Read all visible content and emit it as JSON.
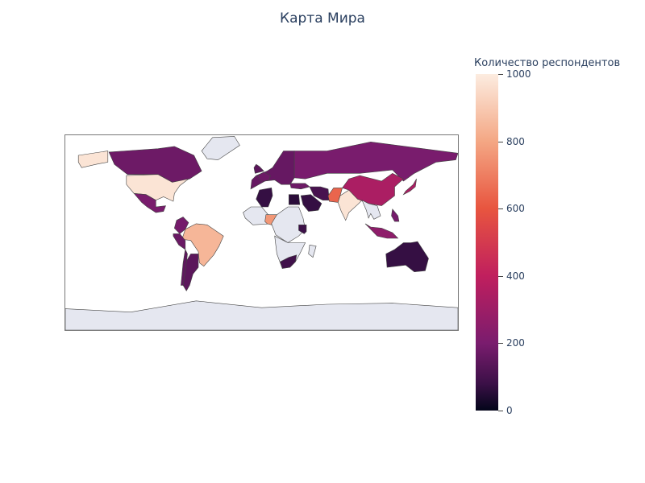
{
  "title": "Карта Мира",
  "colorbar": {
    "title": "Количество респондентов",
    "ticks": [
      {
        "label": "1000",
        "value": 1000
      },
      {
        "label": "800",
        "value": 800
      },
      {
        "label": "600",
        "value": 600
      },
      {
        "label": "400",
        "value": 400
      },
      {
        "label": "200",
        "value": 200
      },
      {
        "label": "0",
        "value": 0
      }
    ],
    "range": [
      0,
      1000
    ],
    "colorscale": [
      "#03051a",
      "#3b1047",
      "#7a1c6e",
      "#c01f5e",
      "#e8553f",
      "#f4a784",
      "#fcece0"
    ]
  },
  "colors": {
    "no_data": "#e5e7f0",
    "border": "#444444"
  },
  "chart_data": {
    "type": "choropleth",
    "projection": "equirectangular",
    "value_range": [
      0,
      1000
    ],
    "countries": [
      {
        "country": "United States",
        "value": 980
      },
      {
        "country": "Canada",
        "value": 300
      },
      {
        "country": "Mexico",
        "value": 330
      },
      {
        "country": "Brazil",
        "value": 870
      },
      {
        "country": "Colombia",
        "value": 320
      },
      {
        "country": "Peru",
        "value": 290
      },
      {
        "country": "Argentina",
        "value": 250
      },
      {
        "country": "Chile",
        "value": 260
      },
      {
        "country": "Russia",
        "value": 330
      },
      {
        "country": "China",
        "value": 450
      },
      {
        "country": "India",
        "value": 980
      },
      {
        "country": "Pakistan",
        "value": 700
      },
      {
        "country": "Nigeria",
        "value": 800
      },
      {
        "country": "South Africa",
        "value": 180
      },
      {
        "country": "Australia",
        "value": 150
      },
      {
        "country": "Indonesia",
        "value": 380
      },
      {
        "country": "Japan",
        "value": 450
      },
      {
        "country": "Saudi Arabia",
        "value": 150
      },
      {
        "country": "Egypt",
        "value": 120
      },
      {
        "country": "Algeria",
        "value": 150
      },
      {
        "country": "Kenya",
        "value": 170
      },
      {
        "country": "United Kingdom",
        "value": 250
      },
      {
        "country": "France",
        "value": 300
      },
      {
        "country": "Germany",
        "value": 280
      },
      {
        "country": "Turkey",
        "value": 300
      },
      {
        "country": "Iran",
        "value": 200
      },
      {
        "country": "Philippines",
        "value": 320
      }
    ]
  }
}
